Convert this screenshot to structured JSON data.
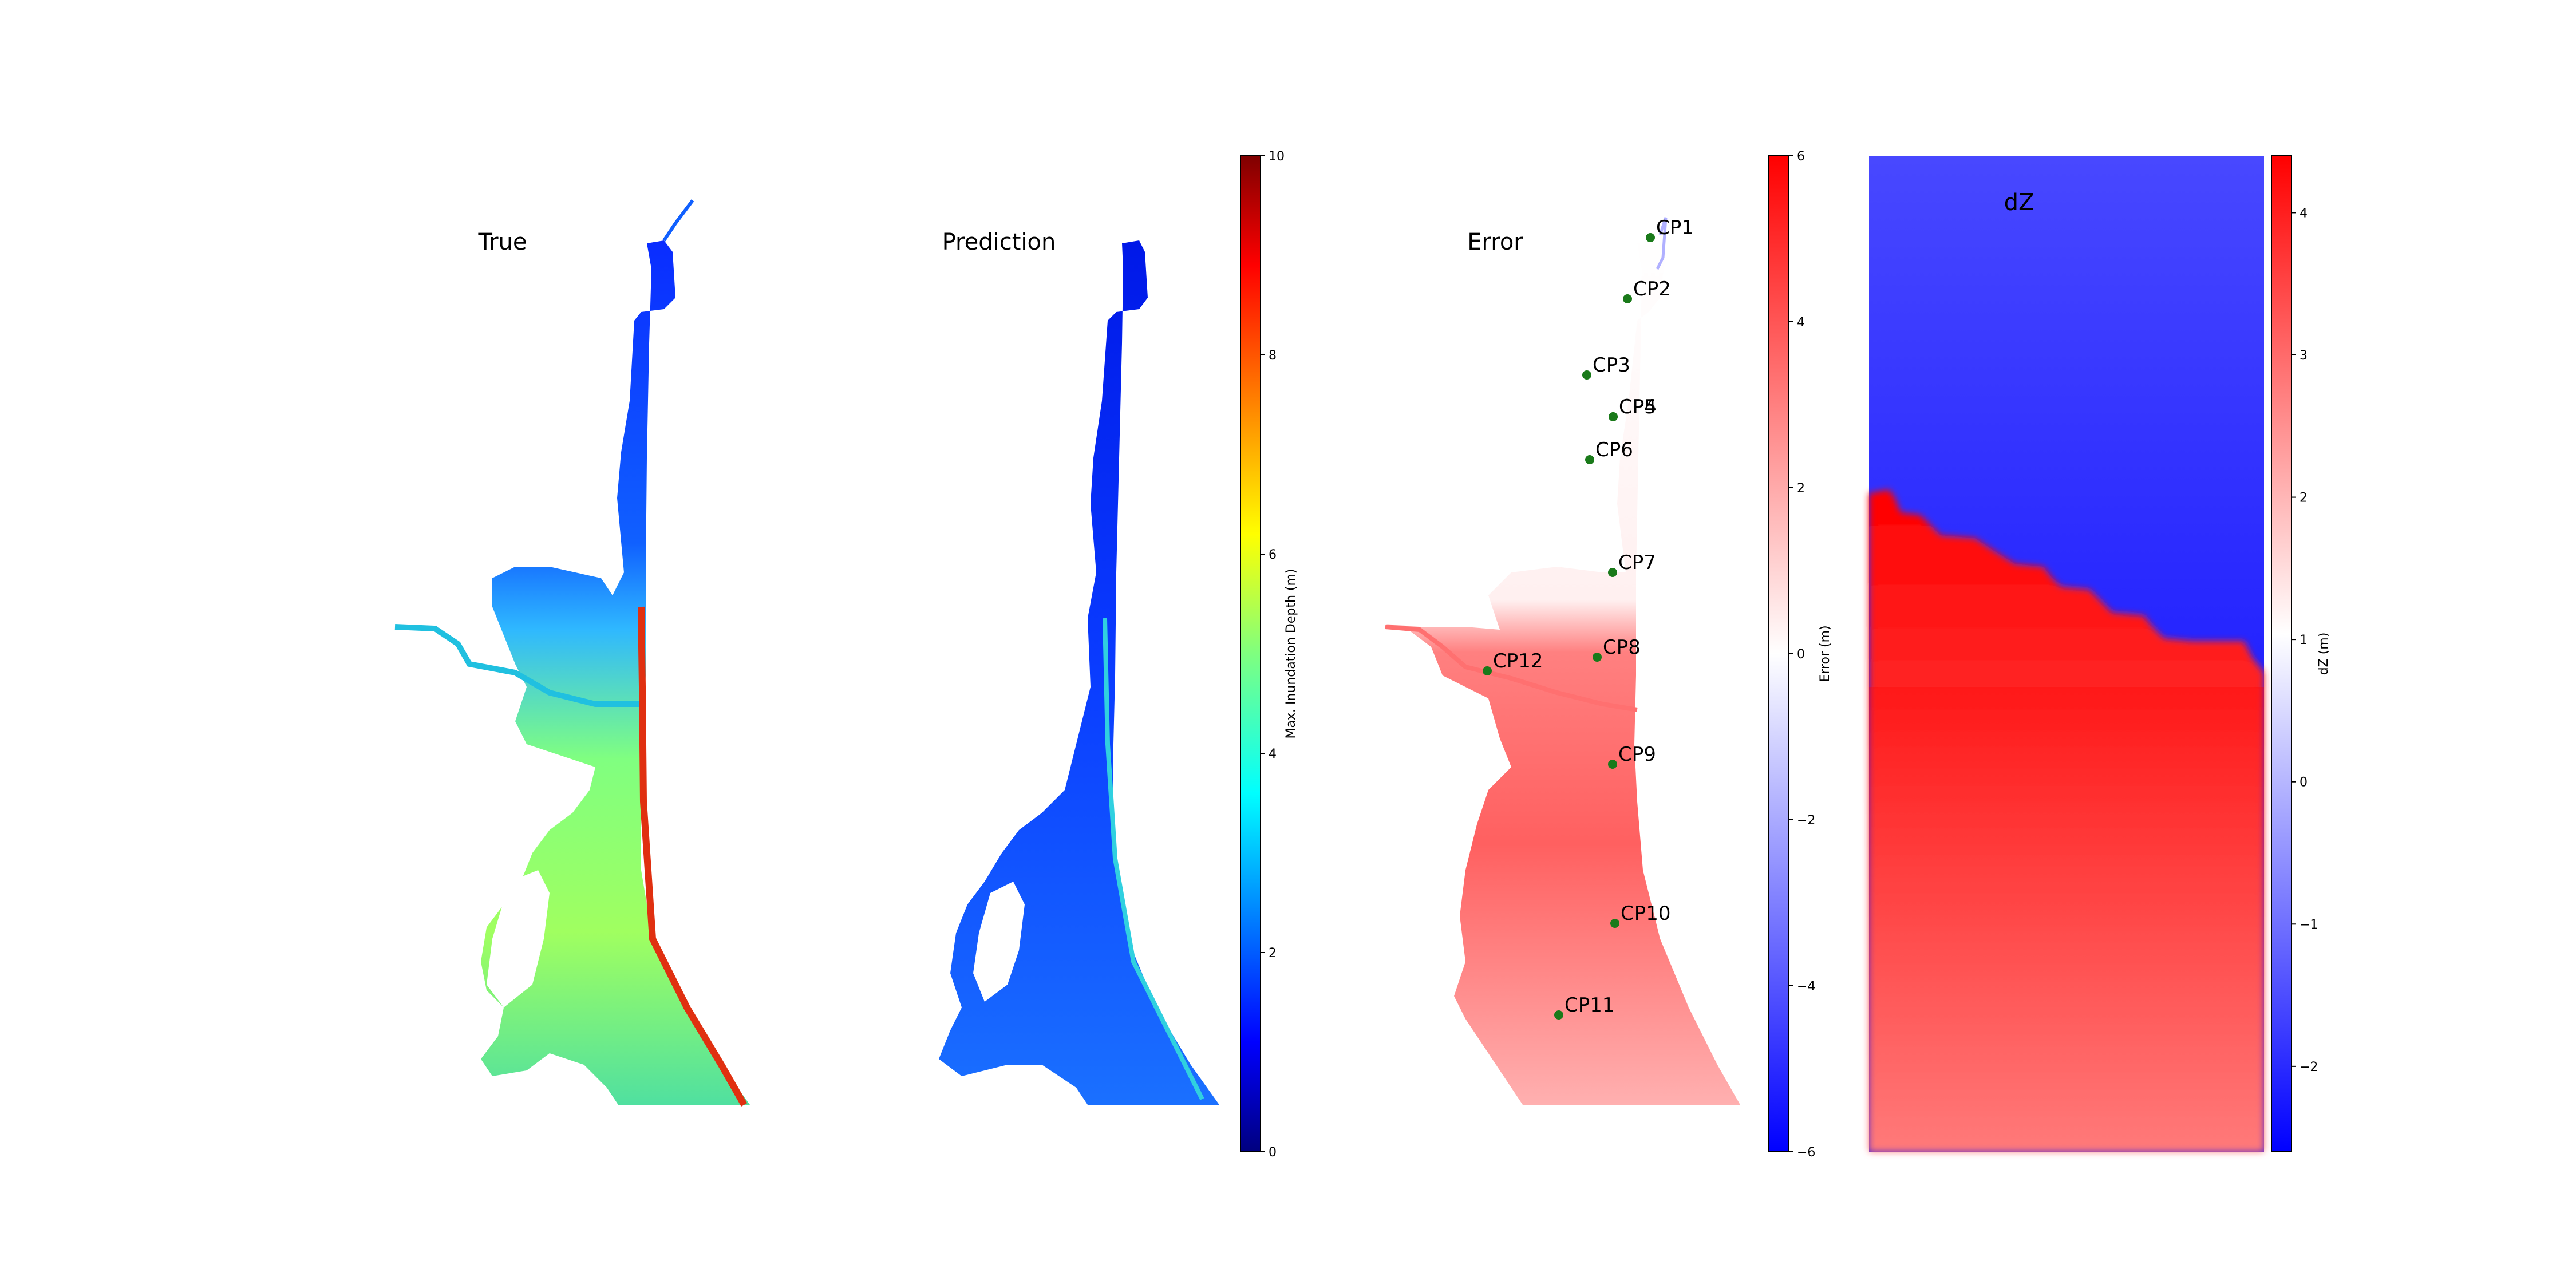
{
  "chart_data": [
    {
      "type": "heatmap",
      "title": "True",
      "colormap": "jet",
      "value_range": [
        0,
        10
      ]
    },
    {
      "type": "heatmap",
      "title": "Prediction",
      "colormap": "jet",
      "value_range": [
        0,
        10
      ],
      "colorbar": {
        "label": "Max. Inundation Depth (m)",
        "ticks": [
          "0",
          "2",
          "4",
          "6",
          "8",
          "10"
        ],
        "range": [
          0,
          10
        ]
      }
    },
    {
      "type": "heatmap",
      "title": "Error",
      "colormap": "bwr",
      "value_range": [
        -6,
        6
      ],
      "colorbar": {
        "label": "Error (m)",
        "ticks": [
          "−6",
          "−4",
          "−2",
          "0",
          "2",
          "4",
          "6"
        ],
        "range": [
          -6,
          6
        ]
      },
      "control_points": [
        "CP1",
        "CP2",
        "CP3",
        "CP4",
        "CP5",
        "CP6",
        "CP7",
        "CP8",
        "CP9",
        "CP10",
        "CP11",
        "CP12"
      ]
    },
    {
      "type": "heatmap",
      "title": "dZ",
      "colormap": "bwr",
      "value_range": [
        -2.6,
        4.4
      ],
      "colorbar": {
        "label": "dZ (m)",
        "ticks": [
          "−2",
          "−1",
          "0",
          "1",
          "2",
          "3",
          "4"
        ],
        "range": [
          -2.6,
          4.4
        ]
      }
    }
  ]
}
